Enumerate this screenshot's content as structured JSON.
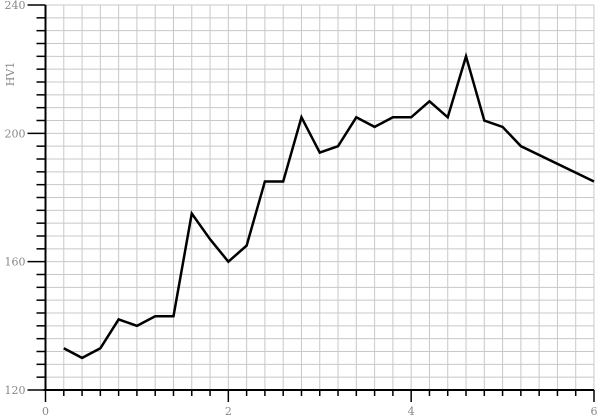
{
  "chart_data": {
    "type": "line",
    "ylabel": "HV1",
    "xlabel": "",
    "xlim": [
      0,
      6
    ],
    "ylim": [
      120,
      240
    ],
    "x_ticks": [
      "0",
      "2",
      "4",
      "6"
    ],
    "y_ticks": [
      "120",
      "160",
      "200",
      "240"
    ],
    "grid": true,
    "line_color": "#000000",
    "grid_color": "#c8c8c8",
    "x": [
      0.2,
      0.4,
      0.6,
      0.8,
      1.0,
      1.2,
      1.4,
      1.6,
      1.8,
      2.0,
      2.2,
      2.4,
      2.6,
      2.8,
      3.0,
      3.2,
      3.4,
      3.6,
      3.8,
      4.0,
      4.2,
      4.4,
      4.6,
      4.8,
      5.0,
      5.2,
      6.0
    ],
    "y": [
      133,
      130,
      133,
      142,
      140,
      143,
      143,
      175,
      167,
      160,
      165,
      185,
      185,
      205,
      194,
      196,
      205,
      202,
      205,
      205,
      210,
      205,
      224,
      204,
      202,
      196,
      185
    ]
  }
}
